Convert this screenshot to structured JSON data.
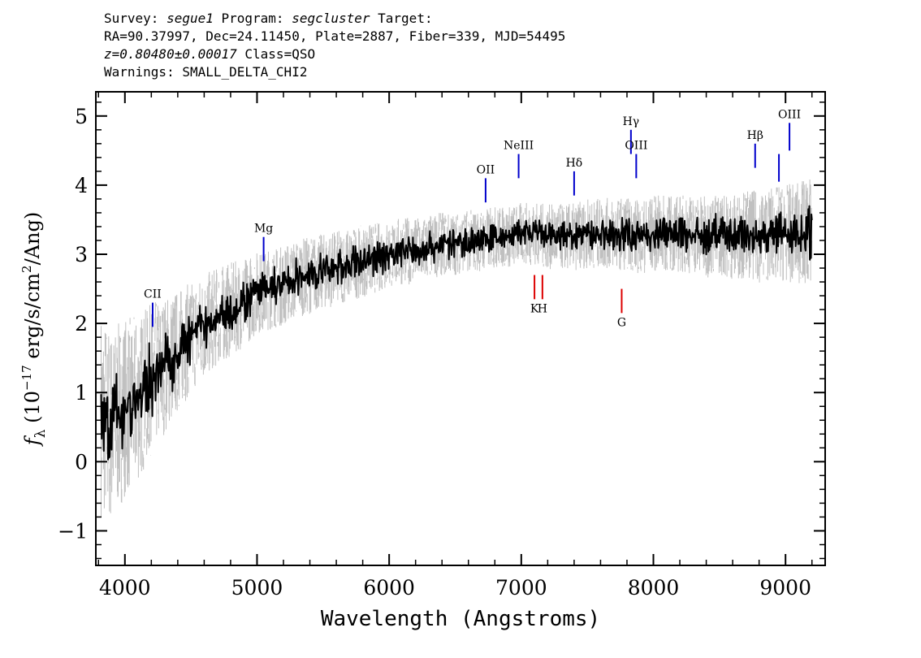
{
  "header": {
    "line1": {
      "survey_label": "Survey: ",
      "survey": "segue1",
      "program_label": " Program: ",
      "program": "segcluster",
      "target_label": " Target:"
    },
    "line2": "RA=90.37997, Dec=24.11450, Plate=2887, Fiber=339, MJD=54495",
    "line3": {
      "z": "z=0.80480±0.00017",
      "class_text": " Class=QSO"
    },
    "line4": "Warnings: SMALL_DELTA_CHI2"
  },
  "colors": {
    "flux": "#000000",
    "error": "#c0c0c0",
    "emission_marker": "#0000cc",
    "absorption_marker": "#dd0000"
  },
  "chart_data": {
    "type": "line",
    "xlabel": "Wavelength (Angstroms)",
    "ylabel": "f_λ (10^-17 erg/s/cm²/Ang)",
    "xlim": [
      3780,
      9300
    ],
    "ylim": [
      -1.5,
      5.35
    ],
    "x_ticks": [
      4000,
      5000,
      6000,
      7000,
      8000,
      9000
    ],
    "x_tick_labels": [
      "4000",
      "5000",
      "6000",
      "7000",
      "8000",
      "9000"
    ],
    "y_ticks": [
      -1,
      0,
      1,
      2,
      3,
      4,
      5
    ],
    "y_tick_labels": [
      "−1",
      "0",
      "1",
      "2",
      "3",
      "4",
      "5"
    ],
    "series": [
      {
        "role": "flux",
        "x": [
          3820,
          3900,
          4000,
          4100,
          4200,
          4300,
          4400,
          4500,
          4600,
          4700,
          4800,
          4900,
          5000,
          5100,
          5200,
          5300,
          5400,
          5500,
          5600,
          5700,
          5800,
          5900,
          6000,
          6100,
          6200,
          6300,
          6400,
          6500,
          6600,
          6700,
          6800,
          6900,
          7000,
          7100,
          7200,
          7300,
          7400,
          7500,
          7600,
          7700,
          7800,
          7900,
          8000,
          8100,
          8200,
          8300,
          8400,
          8500,
          8600,
          8700,
          8800,
          8900,
          9000,
          9100,
          9200
        ],
        "y": [
          0.7,
          0.5,
          0.8,
          0.9,
          1.2,
          1.4,
          1.6,
          1.8,
          1.95,
          2.1,
          2.2,
          2.3,
          2.45,
          2.5,
          2.55,
          2.65,
          2.7,
          2.75,
          2.8,
          2.85,
          2.9,
          2.95,
          3.0,
          3.05,
          3.05,
          3.1,
          3.15,
          3.15,
          3.2,
          3.2,
          3.25,
          3.25,
          3.3,
          3.3,
          3.25,
          3.25,
          3.25,
          3.3,
          3.3,
          3.3,
          3.3,
          3.25,
          3.3,
          3.3,
          3.3,
          3.3,
          3.25,
          3.3,
          3.25,
          3.3,
          3.25,
          3.3,
          3.3,
          3.3,
          3.35
        ]
      },
      {
        "role": "error_envelope",
        "x": [
          3820,
          4000,
          4200,
          4500,
          5000,
          5500,
          6000,
          6500,
          7000,
          7500,
          8000,
          8500,
          9000,
          9200
        ],
        "half_width": [
          1.5,
          1.3,
          1.1,
          0.8,
          0.6,
          0.55,
          0.5,
          0.45,
          0.45,
          0.5,
          0.55,
          0.6,
          0.7,
          0.8
        ]
      }
    ],
    "line_markers": [
      {
        "label": "CII",
        "x": 4210,
        "y_top": 2.3,
        "y_bottom": 1.95,
        "kind": "emission"
      },
      {
        "label": "Mg",
        "x": 5050,
        "y_top": 3.25,
        "y_bottom": 2.9,
        "kind": "emission"
      },
      {
        "label": "OII",
        "x": 6730,
        "y_top": 4.1,
        "y_bottom": 3.75,
        "kind": "emission"
      },
      {
        "label": "NeIII",
        "x": 6980,
        "y_top": 4.45,
        "y_bottom": 4.1,
        "kind": "emission"
      },
      {
        "label": "Hδ",
        "x": 7400,
        "y_top": 4.2,
        "y_bottom": 3.85,
        "kind": "emission"
      },
      {
        "label": "Hγ",
        "x": 7830,
        "y_top": 4.8,
        "y_bottom": 4.45,
        "kind": "emission"
      },
      {
        "label": "OIII",
        "x": 7870,
        "y_top": 4.45,
        "y_bottom": 4.1,
        "kind": "emission"
      },
      {
        "label": "Hβ",
        "x": 8770,
        "y_top": 4.6,
        "y_bottom": 4.25,
        "kind": "emission"
      },
      {
        "label": "",
        "x": 8950,
        "y_top": 4.45,
        "y_bottom": 4.05,
        "kind": "emission"
      },
      {
        "label": "OIII",
        "x": 9030,
        "y_top": 4.9,
        "y_bottom": 4.5,
        "kind": "emission"
      },
      {
        "label": "K",
        "x": 7100,
        "y_top": 2.7,
        "y_bottom": 2.35,
        "kind": "absorption"
      },
      {
        "label": "H",
        "x": 7160,
        "y_top": 2.7,
        "y_bottom": 2.35,
        "kind": "absorption"
      },
      {
        "label": "G",
        "x": 7760,
        "y_top": 2.5,
        "y_bottom": 2.15,
        "kind": "absorption"
      }
    ]
  }
}
